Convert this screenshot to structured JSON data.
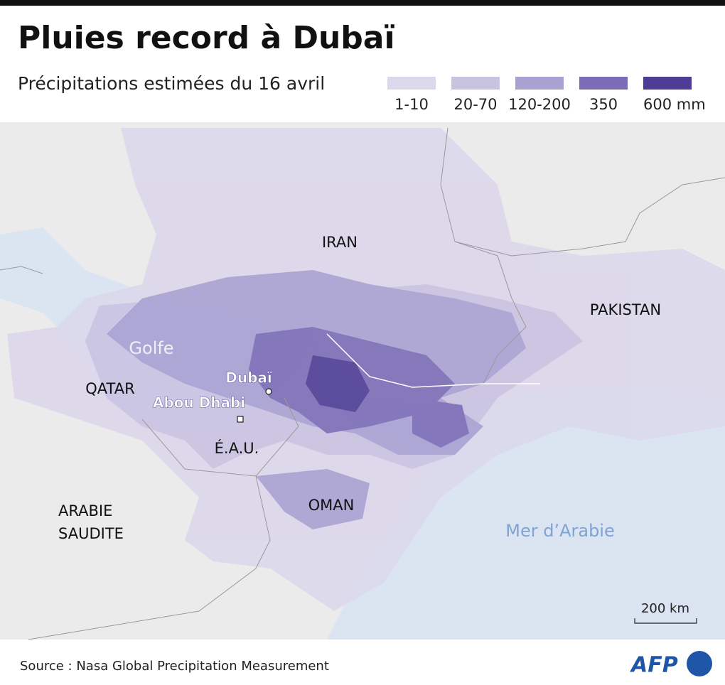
{
  "header": {
    "title": "Pluies record à Dubaï",
    "subtitle": "Précipitations estimées du 16 avril"
  },
  "legend": {
    "items": [
      {
        "label": "1-10",
        "color": "#dcd8ec"
      },
      {
        "label": "20-70",
        "color": "#c9c3e2"
      },
      {
        "label": "120-200",
        "color": "#a9a1d2"
      },
      {
        "label": "350",
        "color": "#7b6cb6"
      },
      {
        "label": "600 mm",
        "color": "#4e3d95"
      }
    ]
  },
  "map": {
    "labels": {
      "iran": "IRAN",
      "pakistan": "PAKISTAN",
      "gulf": "Golfe",
      "qatar": "QATAR",
      "dubai": "Dubaï",
      "abu_dhabi": "Abou Dhabi",
      "uae": "É.A.U.",
      "oman": "OMAN",
      "saudi": [
        "ARABIE",
        "SAUDITE"
      ],
      "sea": "Mer d’Arabie"
    },
    "scale": "200 km"
  },
  "footer": {
    "source": "Source : Nasa Global Precipitation Measurement",
    "logo": "AFP"
  }
}
